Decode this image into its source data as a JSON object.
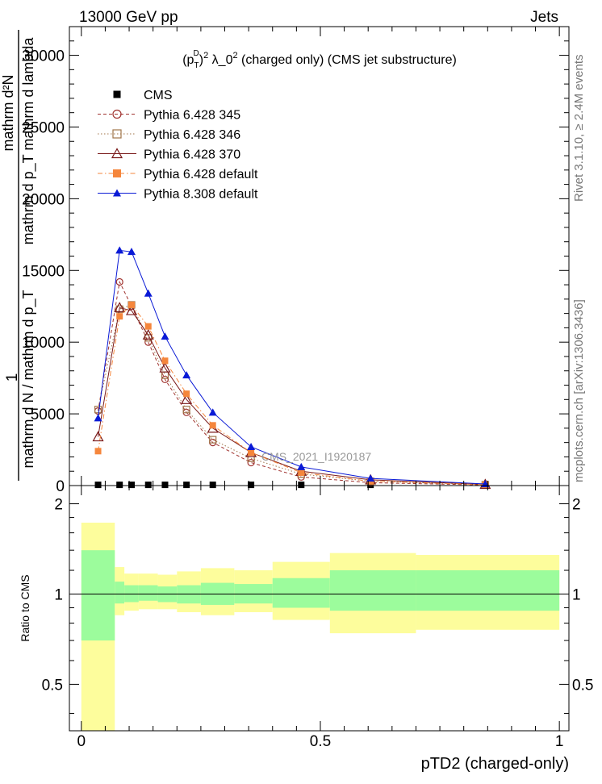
{
  "header": {
    "left": "13000 GeV pp",
    "right": "Jets",
    "side_top": "Rivet 3.1.10, ≥ 2.4M events",
    "side_bottom": "mcplots.cern.ch [arXiv:1306.3436]"
  },
  "main": {
    "title": "(p_T^D)^2 λ_0^2 (charged only) (CMS jet substructure)",
    "title_parts": {
      "a": "(p",
      "sub": "T",
      "sup1": "D",
      "b": ")",
      "sup2": "2",
      "c": " λ_0",
      "sup3": "2",
      "d": " (charged only) (CMS jet substructure)"
    },
    "ylabel_num": "mathrm d²N",
    "ylabel_den": "mathrm d p_T mathrm d lambda",
    "ylabel_prefix": "1",
    "ylabel_bottom": "mathrm d N / mathrm d p_T",
    "watermark": "CMS_2021_I1920187",
    "yticks": [
      "0",
      "5000",
      "10000",
      "15000",
      "20000",
      "25000",
      "30000"
    ]
  },
  "ratio": {
    "ylabel": "Ratio to CMS",
    "yticks": [
      "0.5",
      "1",
      "2"
    ]
  },
  "xaxis": {
    "label": "pTD2 (charged-only)",
    "ticks": [
      "0",
      "0.5",
      "1"
    ]
  },
  "chart_data": {
    "type": "line",
    "xlim": [
      -0.025,
      1.02
    ],
    "ylim": [
      0,
      32000
    ],
    "ratio_ylim": [
      0.35,
      2.3
    ],
    "bins": [
      0.0,
      0.07,
      0.09,
      0.12,
      0.16,
      0.2,
      0.25,
      0.32,
      0.4,
      0.52,
      0.7,
      1.0
    ],
    "x": [
      0.035,
      0.08,
      0.105,
      0.14,
      0.175,
      0.22,
      0.275,
      0.355,
      0.46,
      0.605,
      0.845
    ],
    "series": [
      {
        "name": "CMS",
        "color": "#000000",
        "marker": "square-filled",
        "line": "none",
        "values": [
          50,
          50,
          50,
          50,
          50,
          50,
          50,
          50,
          50,
          50,
          50
        ]
      },
      {
        "name": "Pythia 6.428 345",
        "color": "#a0332f",
        "marker": "circle-open",
        "line": "dashed",
        "values": [
          5200,
          14200,
          12500,
          10000,
          7400,
          5100,
          3000,
          1600,
          600,
          200,
          40
        ]
      },
      {
        "name": "Pythia 6.428 346",
        "color": "#a0754a",
        "marker": "square-open",
        "line": "dotted",
        "values": [
          5300,
          12300,
          12600,
          10300,
          7700,
          5300,
          3200,
          1900,
          800,
          300,
          60
        ]
      },
      {
        "name": "Pythia 6.428 370",
        "color": "#7a1a1a",
        "marker": "triangle-open",
        "line": "solid",
        "values": [
          3400,
          12400,
          12200,
          10500,
          8200,
          6000,
          4000,
          2300,
          1000,
          400,
          80
        ]
      },
      {
        "name": "Pythia 6.428 default",
        "color": "#f5863c",
        "marker": "square-filled",
        "line": "dashdot",
        "values": [
          2400,
          11800,
          12600,
          11100,
          8700,
          6400,
          4200,
          2300,
          900,
          300,
          70
        ]
      },
      {
        "name": "Pythia 8.308 default",
        "color": "#0a1ad6",
        "marker": "triangle-filled",
        "line": "solid",
        "values": [
          4700,
          16400,
          16300,
          13400,
          10400,
          7700,
          5100,
          2700,
          1300,
          500,
          110
        ]
      }
    ],
    "ratio_band_inner": [
      [
        0.7,
        1.4
      ],
      [
        0.93,
        1.1
      ],
      [
        0.94,
        1.07
      ],
      [
        0.95,
        1.07
      ],
      [
        0.94,
        1.06
      ],
      [
        0.93,
        1.07
      ],
      [
        0.92,
        1.09
      ],
      [
        0.93,
        1.08
      ],
      [
        0.9,
        1.13
      ],
      [
        0.88,
        1.2
      ],
      [
        0.88,
        1.2
      ]
    ],
    "ratio_band_outer": [
      [
        0.35,
        1.73
      ],
      [
        0.85,
        1.23
      ],
      [
        0.88,
        1.17
      ],
      [
        0.89,
        1.17
      ],
      [
        0.89,
        1.16
      ],
      [
        0.87,
        1.19
      ],
      [
        0.85,
        1.22
      ],
      [
        0.87,
        1.2
      ],
      [
        0.82,
        1.28
      ],
      [
        0.74,
        1.37
      ],
      [
        0.76,
        1.35
      ]
    ],
    "colors": {
      "band_inner": "#9cfc9c",
      "band_outer": "#fdfd9c"
    }
  }
}
